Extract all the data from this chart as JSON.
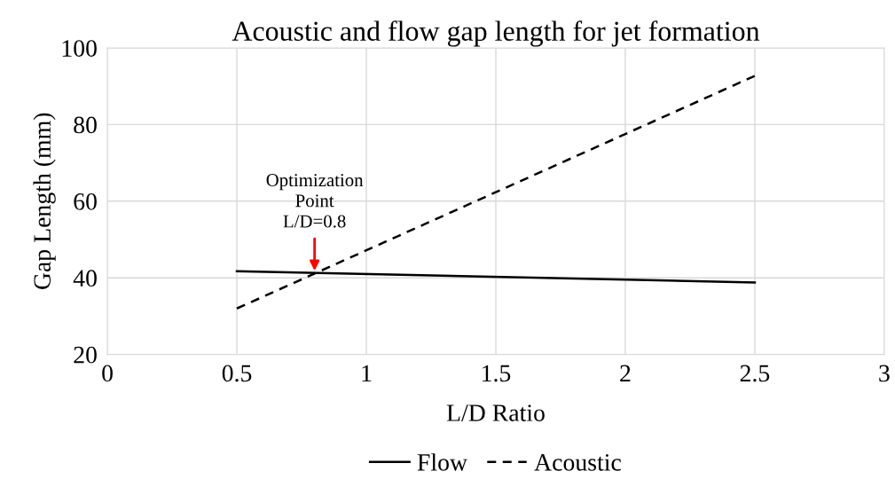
{
  "chart_data": {
    "type": "line",
    "title": "Acoustic and flow gap length for jet formation",
    "xlabel": "L/D Ratio",
    "ylabel": "Gap Length (mm)",
    "x": [
      0.5,
      2.5
    ],
    "series": [
      {
        "name": "Flow",
        "color": "#000000",
        "values": [
          41.7,
          38.8
        ],
        "line_style": "solid"
      },
      {
        "name": "Acoustic",
        "color": "#000000",
        "values": [
          32,
          92.7
        ],
        "line_style": "dashed"
      }
    ],
    "xlim": [
      0,
      3
    ],
    "xticks": [
      0,
      0.5,
      1,
      1.5,
      2,
      2.5,
      3
    ],
    "ylim": [
      20,
      100
    ],
    "yticks": [
      20,
      40,
      60,
      80,
      100
    ],
    "grid": true,
    "legend": "bottom",
    "marker": "none",
    "annotations": [
      {
        "text": "Optimization\nPoint\nL/D=0.8",
        "x": 0.8,
        "y": 41.2
      }
    ]
  }
}
